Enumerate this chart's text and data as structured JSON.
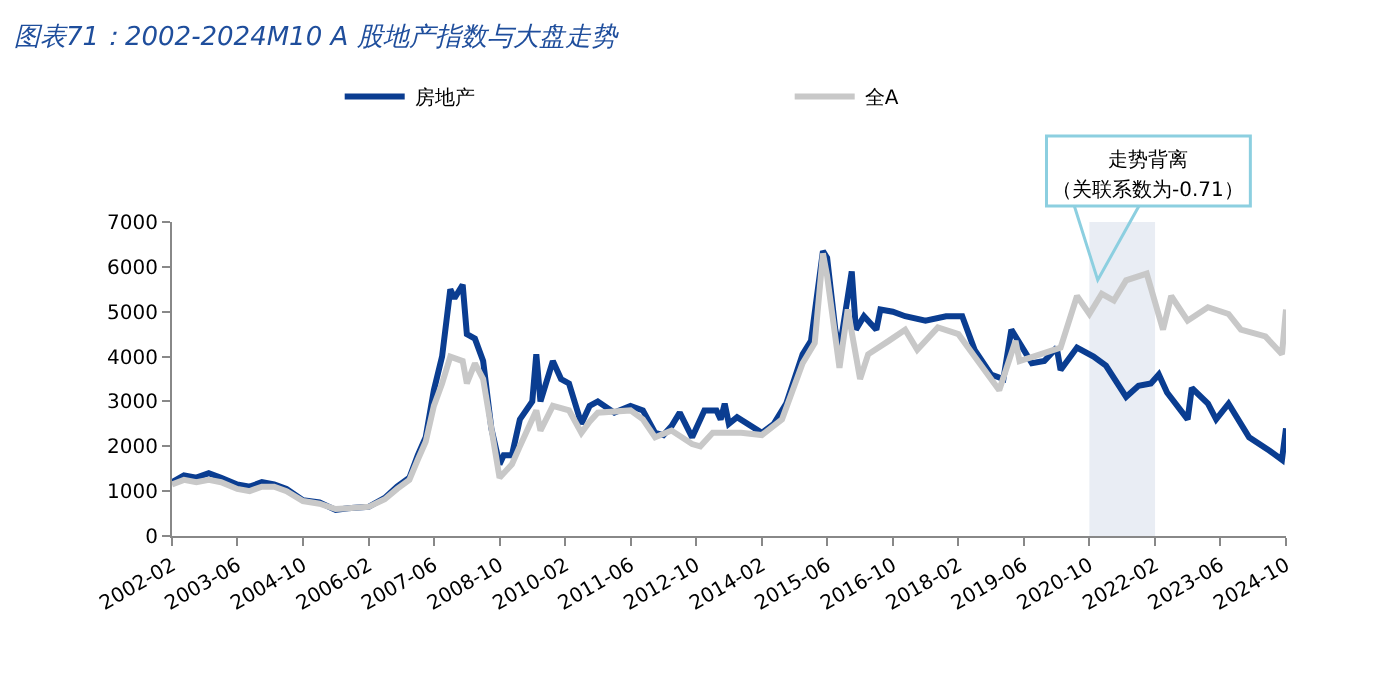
{
  "chart_data": {
    "type": "line",
    "title": "图表71：2002-2024M10 A 股地产指数与大盘走势",
    "legend": "top",
    "grid": false,
    "marker": "none",
    "line_style": "solid",
    "ylim": [
      0,
      7000
    ],
    "yticks": [
      0,
      1000,
      2000,
      3000,
      4000,
      5000,
      6000,
      7000
    ],
    "xlim": [
      "2002-02",
      "2024-10"
    ],
    "xticks": [
      "2002-02",
      "2003-06",
      "2004-10",
      "2006-02",
      "2007-06",
      "2008-10",
      "2010-02",
      "2011-06",
      "2012-10",
      "2014-02",
      "2015-06",
      "2016-10",
      "2018-02",
      "2019-06",
      "2020-10",
      "2022-02",
      "2023-06",
      "2024-10"
    ],
    "bands": [
      {
        "axis": "x",
        "from": "2020-10",
        "to": "2022-02",
        "color": "#e9edf4"
      }
    ],
    "annotations": [
      "走势背离",
      "（关联系数为-0.71）"
    ],
    "series": [
      {
        "name": "房地产",
        "color": "#0a3d91",
        "x": [
          "2002-02",
          "2002-05",
          "2002-08",
          "2002-11",
          "2003-02",
          "2003-06",
          "2003-09",
          "2003-12",
          "2004-03",
          "2004-06",
          "2004-10",
          "2005-02",
          "2005-06",
          "2005-09",
          "2006-02",
          "2006-06",
          "2006-09",
          "2006-12",
          "2007-02",
          "2007-04",
          "2007-06",
          "2007-08",
          "2007-10",
          "2007-11",
          "2008-01",
          "2008-02",
          "2008-04",
          "2008-06",
          "2008-08",
          "2008-10",
          "2008-11",
          "2009-01",
          "2009-03",
          "2009-06",
          "2009-07",
          "2009-08",
          "2009-11",
          "2010-01",
          "2010-03",
          "2010-06",
          "2010-08",
          "2010-10",
          "2011-02",
          "2011-06",
          "2011-09",
          "2011-12",
          "2012-02",
          "2012-04",
          "2012-06",
          "2012-09",
          "2012-12",
          "2013-03",
          "2013-04",
          "2013-05",
          "2013-06",
          "2013-08",
          "2014-02",
          "2014-05",
          "2014-08",
          "2014-12",
          "2015-02",
          "2015-05",
          "2015-06",
          "2015-08",
          "2015-09",
          "2015-12",
          "2016-01",
          "2016-03",
          "2016-06",
          "2016-07",
          "2016-10",
          "2017-01",
          "2017-06",
          "2017-11",
          "2018-03",
          "2018-06",
          "2018-10",
          "2019-01",
          "2019-03",
          "2019-06",
          "2019-08",
          "2019-11",
          "2020-02",
          "2020-03",
          "2020-07",
          "2020-11",
          "2021-02",
          "2021-07",
          "2021-10",
          "2022-01",
          "2022-03",
          "2022-05",
          "2022-10",
          "2022-11",
          "2023-03",
          "2023-05",
          "2023-08",
          "2024-01",
          "2024-06",
          "2024-09",
          "2024-10"
        ],
        "values": [
          1200,
          1350,
          1300,
          1400,
          1300,
          1150,
          1100,
          1200,
          1150,
          1050,
          800,
          750,
          580,
          620,
          650,
          850,
          1100,
          1300,
          1800,
          2200,
          3250,
          4000,
          5500,
          5300,
          5600,
          4500,
          4400,
          3900,
          2400,
          1600,
          1800,
          1800,
          2600,
          3000,
          4050,
          3000,
          3900,
          3500,
          3400,
          2500,
          2900,
          3000,
          2750,
          2900,
          2800,
          2300,
          2250,
          2450,
          2750,
          2200,
          2800,
          2800,
          2600,
          2950,
          2500,
          2650,
          2300,
          2500,
          2950,
          4050,
          4350,
          6350,
          6200,
          4600,
          4150,
          5900,
          4600,
          4900,
          4600,
          5050,
          5000,
          4900,
          4800,
          4900,
          4900,
          4150,
          3600,
          3500,
          4600,
          4150,
          3850,
          3900,
          4200,
          3700,
          4200,
          4000,
          3800,
          3100,
          3350,
          3400,
          3600,
          3200,
          2600,
          3300,
          2950,
          2600,
          2950,
          2200,
          1900,
          1700,
          2400
        ]
      },
      {
        "name": "全A",
        "color": "#c8c8c8",
        "x": [
          "2002-02",
          "2002-05",
          "2002-08",
          "2002-11",
          "2003-02",
          "2003-06",
          "2003-09",
          "2003-12",
          "2004-03",
          "2004-06",
          "2004-10",
          "2005-02",
          "2005-06",
          "2005-09",
          "2006-02",
          "2006-06",
          "2006-09",
          "2006-12",
          "2007-02",
          "2007-04",
          "2007-06",
          "2007-08",
          "2007-10",
          "2008-01",
          "2008-02",
          "2008-04",
          "2008-06",
          "2008-08",
          "2008-10",
          "2009-01",
          "2009-03",
          "2009-07",
          "2009-08",
          "2009-11",
          "2010-03",
          "2010-06",
          "2010-08",
          "2010-10",
          "2011-06",
          "2011-09",
          "2011-12",
          "2012-04",
          "2012-09",
          "2012-11",
          "2013-02",
          "2013-09",
          "2014-02",
          "2014-07",
          "2014-12",
          "2015-03",
          "2015-05",
          "2015-06",
          "2015-09",
          "2015-11",
          "2016-02",
          "2016-04",
          "2016-09",
          "2017-01",
          "2017-04",
          "2017-09",
          "2018-02",
          "2018-06",
          "2018-12",
          "2019-04",
          "2019-05",
          "2019-10",
          "2020-03",
          "2020-07",
          "2020-10",
          "2021-01",
          "2021-04",
          "2021-07",
          "2021-12",
          "2022-04",
          "2022-06",
          "2022-10",
          "2023-03",
          "2023-08",
          "2023-11",
          "2024-05",
          "2024-09",
          "2024-10"
        ],
        "values": [
          1150,
          1250,
          1200,
          1250,
          1200,
          1050,
          1000,
          1100,
          1100,
          1000,
          780,
          720,
          600,
          620,
          650,
          820,
          1050,
          1250,
          1700,
          2100,
          2900,
          3400,
          4000,
          3900,
          3400,
          3850,
          3500,
          2400,
          1300,
          1600,
          2000,
          2800,
          2350,
          2900,
          2800,
          2300,
          2550,
          2750,
          2800,
          2600,
          2200,
          2350,
          2050,
          2000,
          2300,
          2300,
          2250,
          2600,
          3850,
          4300,
          6300,
          5800,
          3750,
          5050,
          3500,
          4050,
          4350,
          4600,
          4150,
          4650,
          4500,
          4000,
          3250,
          4350,
          3900,
          4050,
          4200,
          5350,
          4950,
          5400,
          5250,
          5700,
          5850,
          4600,
          5350,
          4800,
          5100,
          4950,
          4600,
          4450,
          4050,
          5050
        ]
      }
    ]
  }
}
